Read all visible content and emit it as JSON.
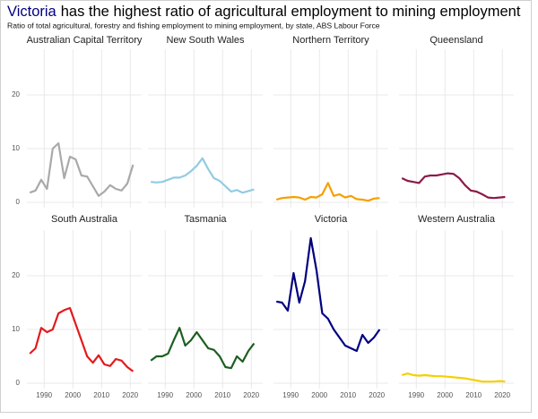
{
  "title_highlight": "Victoria",
  "title": "has the highest ratio of agricultural employment to mining employment",
  "subtitle": "Ratio of total agricultural, forestry and fishing employment to mining employment, by state, ABS Labour Force",
  "chart_data": [
    {
      "type": "line",
      "title": "Australian Capital Territory",
      "color": "#a9a9a9",
      "x": [
        1985,
        1987,
        1989,
        1991,
        1993,
        1995,
        1997,
        1999,
        2001,
        2003,
        2005,
        2007,
        2009,
        2011,
        2013,
        2015,
        2017,
        2019,
        2021
      ],
      "values": [
        1.8,
        2.2,
        4.2,
        2.5,
        10,
        11,
        4.5,
        8.5,
        8,
        5,
        4.8,
        3,
        1.2,
        2,
        3.2,
        2.5,
        2.2,
        3.5,
        7
      ],
      "xlim": [
        1984,
        2024
      ],
      "ylim": [
        -1,
        28.5
      ],
      "xticks": [
        1990,
        2000,
        2010,
        2020
      ],
      "yticks": [
        0,
        10,
        20
      ],
      "grid": true
    },
    {
      "type": "line",
      "title": "New South Wales",
      "color": "#92cbe3",
      "x": [
        1985,
        1987,
        1989,
        1991,
        1993,
        1995,
        1997,
        1999,
        2001,
        2003,
        2005,
        2007,
        2009,
        2011,
        2013,
        2015,
        2017,
        2019,
        2021
      ],
      "values": [
        3.8,
        3.7,
        3.8,
        4.2,
        4.6,
        4.6,
        5,
        5.8,
        6.8,
        8.2,
        6.2,
        4.5,
        4,
        3,
        2,
        2.3,
        1.8,
        2.1,
        2.4
      ],
      "xlim": [
        1984,
        2024
      ],
      "ylim": [
        -1,
        28.5
      ],
      "xticks": [
        1990,
        2000,
        2010,
        2020
      ],
      "yticks": [
        0,
        10,
        20
      ],
      "grid": true
    },
    {
      "type": "line",
      "title": "Northern Territory",
      "color": "#f4a000",
      "x": [
        1985,
        1987,
        1989,
        1991,
        1993,
        1995,
        1997,
        1999,
        2001,
        2003,
        2005,
        2007,
        2009,
        2011,
        2013,
        2015,
        2017,
        2019,
        2021
      ],
      "values": [
        0.5,
        0.8,
        0.9,
        1,
        0.9,
        0.5,
        1,
        0.9,
        1.5,
        3.6,
        1.2,
        1.5,
        0.9,
        1.2,
        0.6,
        0.5,
        0.3,
        0.7,
        0.8
      ],
      "xlim": [
        1984,
        2024
      ],
      "ylim": [
        -1,
        28.5
      ],
      "xticks": [
        1990,
        2000,
        2010,
        2020
      ],
      "yticks": [
        0,
        10,
        20
      ],
      "grid": true
    },
    {
      "type": "line",
      "title": "Queensland",
      "color": "#8b1a4a",
      "x": [
        1985,
        1987,
        1989,
        1991,
        1993,
        1995,
        1997,
        1999,
        2001,
        2003,
        2005,
        2007,
        2009,
        2011,
        2013,
        2015,
        2017,
        2019,
        2021
      ],
      "values": [
        4.5,
        4,
        3.8,
        3.6,
        4.8,
        5,
        5,
        5.2,
        5.4,
        5.3,
        4.5,
        3.2,
        2.2,
        2,
        1.5,
        0.9,
        0.8,
        0.9,
        1
      ],
      "xlim": [
        1984,
        2024
      ],
      "ylim": [
        -1,
        28.5
      ],
      "xticks": [
        1990,
        2000,
        2010,
        2020
      ],
      "yticks": [
        0,
        10,
        20
      ],
      "grid": true
    },
    {
      "type": "line",
      "title": "South Australia",
      "color": "#e31a1c",
      "x": [
        1985,
        1987,
        1989,
        1991,
        1993,
        1995,
        1997,
        1999,
        2001,
        2003,
        2005,
        2007,
        2009,
        2011,
        2013,
        2015,
        2017,
        2019,
        2021
      ],
      "values": [
        5.5,
        6.5,
        10.3,
        9.5,
        10,
        13,
        13.6,
        14,
        11,
        8,
        5,
        3.8,
        5.2,
        3.5,
        3.2,
        4.5,
        4.2,
        3,
        2.2
      ],
      "xlim": [
        1984,
        2024
      ],
      "ylim": [
        -1,
        28.5
      ],
      "xticks": [
        1990,
        2000,
        2010,
        2020
      ],
      "yticks": [
        0,
        10,
        20
      ],
      "grid": true
    },
    {
      "type": "line",
      "title": "Tasmania",
      "color": "#1b5e20",
      "x": [
        1985,
        1987,
        1989,
        1991,
        1993,
        1995,
        1997,
        1999,
        2001,
        2003,
        2005,
        2007,
        2009,
        2011,
        2013,
        2015,
        2017,
        2019,
        2021
      ],
      "values": [
        4.2,
        5,
        5,
        5.5,
        8,
        10.3,
        7,
        8,
        9.5,
        8,
        6.5,
        6.2,
        5,
        3,
        2.8,
        5,
        4,
        6,
        7.4
      ],
      "xlim": [
        1984,
        2024
      ],
      "ylim": [
        -1,
        28.5
      ],
      "xticks": [
        1990,
        2000,
        2010,
        2020
      ],
      "yticks": [
        0,
        10,
        20
      ],
      "grid": true
    },
    {
      "type": "line",
      "title": "Victoria",
      "color": "#000080",
      "x": [
        1985,
        1987,
        1989,
        1991,
        1993,
        1995,
        1997,
        1999,
        2001,
        2003,
        2005,
        2007,
        2009,
        2011,
        2013,
        2015,
        2017,
        2019,
        2021
      ],
      "values": [
        15.2,
        15,
        13.5,
        20.5,
        15,
        19,
        27,
        21,
        13,
        12,
        10,
        8.5,
        7,
        6.5,
        6,
        9,
        7.5,
        8.5,
        10
      ],
      "xlim": [
        1984,
        2024
      ],
      "ylim": [
        -1,
        28.5
      ],
      "xticks": [
        1990,
        2000,
        2010,
        2020
      ],
      "yticks": [
        0,
        10,
        20
      ],
      "grid": true
    },
    {
      "type": "line",
      "title": "Western Australia",
      "color": "#f5d000",
      "x": [
        1985,
        1987,
        1989,
        1991,
        1993,
        1995,
        1997,
        1999,
        2001,
        2003,
        2005,
        2007,
        2009,
        2011,
        2013,
        2015,
        2017,
        2019,
        2021
      ],
      "values": [
        1.5,
        1.8,
        1.5,
        1.4,
        1.5,
        1.4,
        1.3,
        1.3,
        1.2,
        1.1,
        1,
        0.9,
        0.7,
        0.5,
        0.3,
        0.3,
        0.3,
        0.4,
        0.3
      ],
      "xlim": [
        1984,
        2024
      ],
      "ylim": [
        -1,
        28.5
      ],
      "xticks": [
        1990,
        2000,
        2010,
        2020
      ],
      "yticks": [
        0,
        10,
        20
      ],
      "grid": true
    }
  ]
}
